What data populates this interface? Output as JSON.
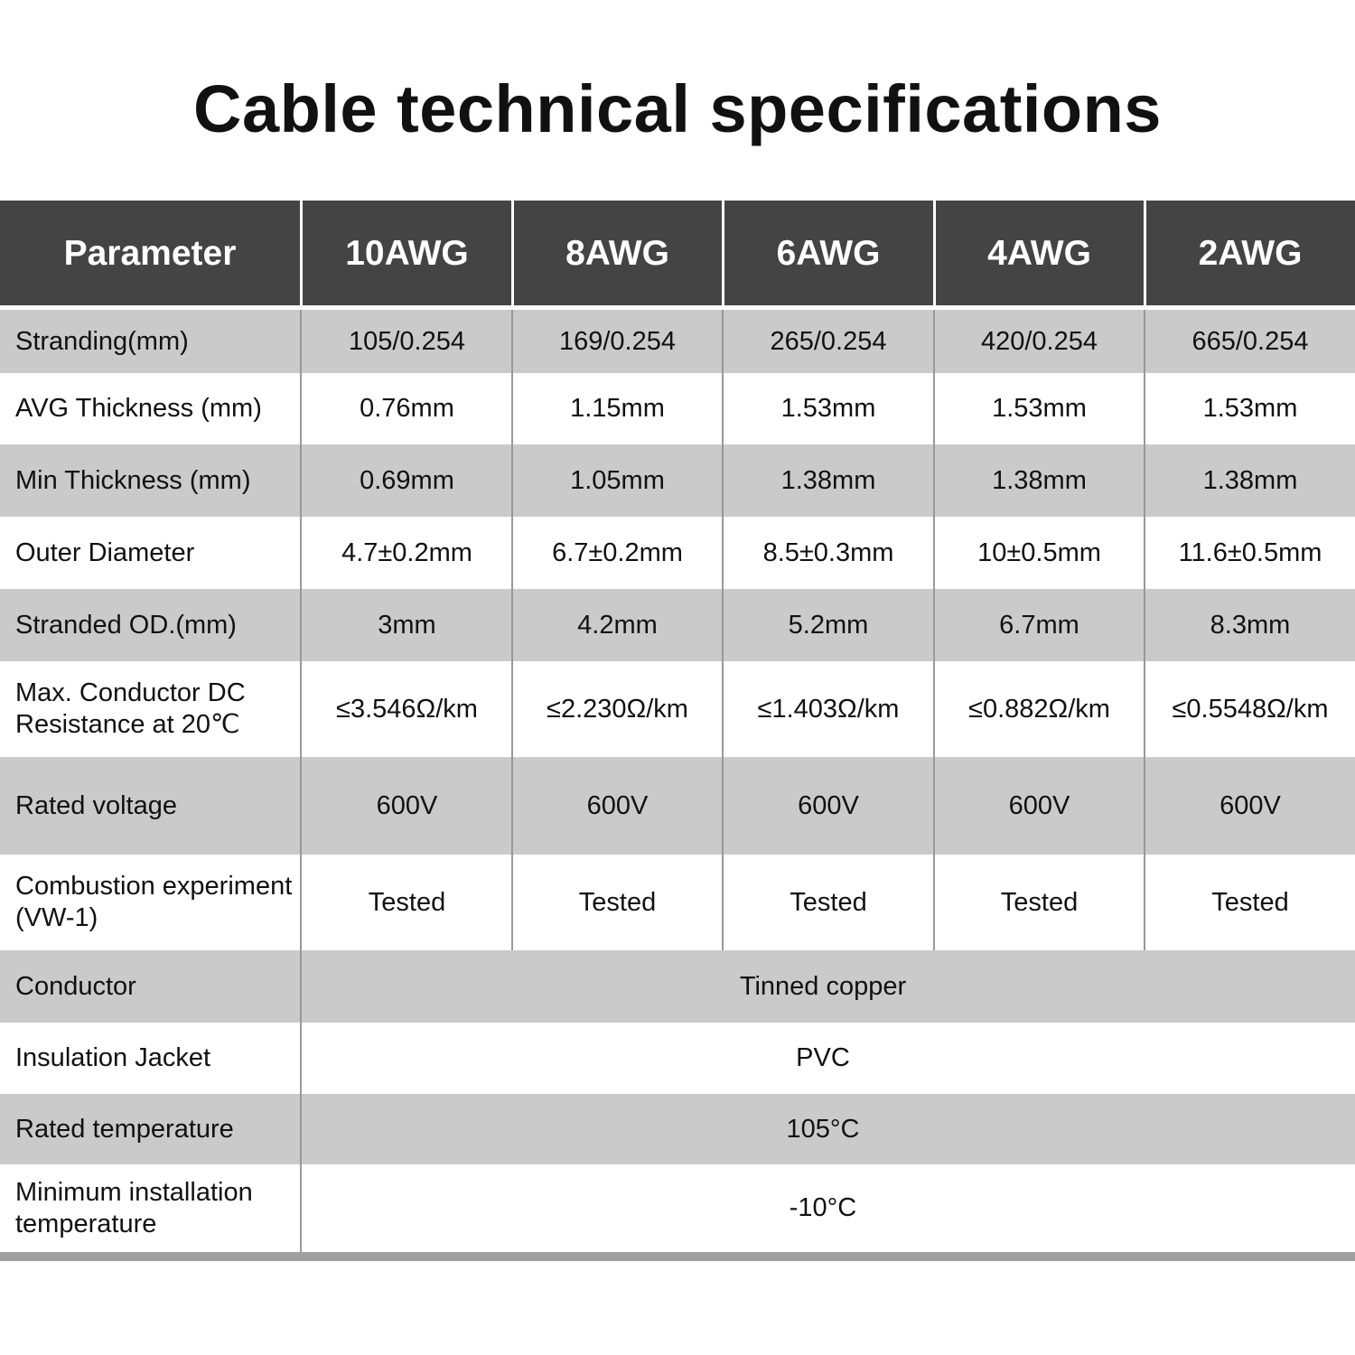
{
  "title": "Cable technical specifications",
  "columns": [
    "Parameter",
    "10AWG",
    "8AWG",
    "6AWG",
    "4AWG",
    "2AWG"
  ],
  "rows": [
    {
      "parameter": "Stranding(mm)",
      "values": [
        "105/0.254",
        "169/0.254",
        "265/0.254",
        "420/0.254",
        "665/0.254"
      ]
    },
    {
      "parameter": "AVG Thickness (mm)",
      "values": [
        "0.76mm",
        "1.15mm",
        "1.53mm",
        "1.53mm",
        "1.53mm"
      ]
    },
    {
      "parameter": "Min Thickness (mm)",
      "values": [
        "0.69mm",
        "1.05mm",
        "1.38mm",
        "1.38mm",
        "1.38mm"
      ]
    },
    {
      "parameter": "Outer Diameter",
      "values": [
        "4.7±0.2mm",
        "6.7±0.2mm",
        "8.5±0.3mm",
        "10±0.5mm",
        "11.6±0.5mm"
      ]
    },
    {
      "parameter": "Stranded OD.(mm)",
      "values": [
        "3mm",
        "4.2mm",
        "5.2mm",
        "6.7mm",
        "8.3mm"
      ]
    },
    {
      "parameter": "Max. Conductor DC Resistance at 20℃",
      "values": [
        "≤3.546Ω/km",
        "≤2.230Ω/km",
        "≤1.403Ω/km",
        "≤0.882Ω/km",
        "≤0.5548Ω/km"
      ]
    },
    {
      "parameter": "Rated voltage",
      "values": [
        "600V",
        "600V",
        "600V",
        "600V",
        "600V"
      ]
    },
    {
      "parameter": "Combustion experiment (VW-1)",
      "values": [
        "Tested",
        "Tested",
        "Tested",
        "Tested",
        "Tested"
      ]
    },
    {
      "parameter": "Conductor",
      "values": [
        "Tinned copper"
      ]
    },
    {
      "parameter": "Insulation Jacket",
      "values": [
        "PVC"
      ]
    },
    {
      "parameter": "Rated temperature",
      "values": [
        "105°C"
      ]
    },
    {
      "parameter": "Minimum installation temperature",
      "values": [
        "-10°C"
      ]
    }
  ],
  "colors": {
    "header_bg": "#444444",
    "header_text": "#ffffff",
    "stripe": "#cacaca",
    "divider": "#999999"
  }
}
